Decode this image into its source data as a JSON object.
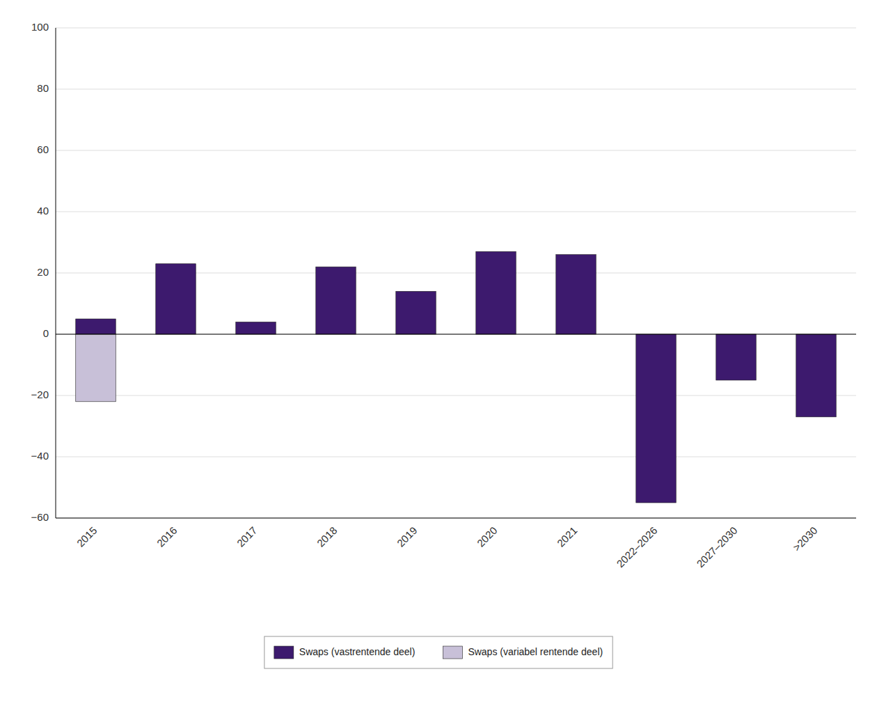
{
  "chart_data": {
    "type": "bar",
    "categories": [
      "2015",
      "2016",
      "2017",
      "2018",
      "2019",
      "2020",
      "2021",
      "2022–2026",
      "2027–2030",
      ">2030"
    ],
    "series": [
      {
        "name": "Swaps (vastrentende deel)",
        "color": "#3d1a6e",
        "values": [
          5,
          23,
          4,
          22,
          14,
          27,
          26,
          -55,
          -15,
          -27
        ]
      },
      {
        "name": "Swaps (variabel rentende deel)",
        "color": "#c8c0d8",
        "values": [
          -22,
          0,
          0,
          0,
          0,
          0,
          0,
          0,
          0,
          0
        ]
      }
    ],
    "ylim": [
      -60,
      100
    ],
    "yticks": [
      {
        "value": -60,
        "label": "−60"
      },
      {
        "value": -40,
        "label": "−40"
      },
      {
        "value": -20,
        "label": "−20"
      },
      0,
      20,
      40,
      60,
      80,
      100
    ],
    "grid": true,
    "legend": "bottom"
  }
}
